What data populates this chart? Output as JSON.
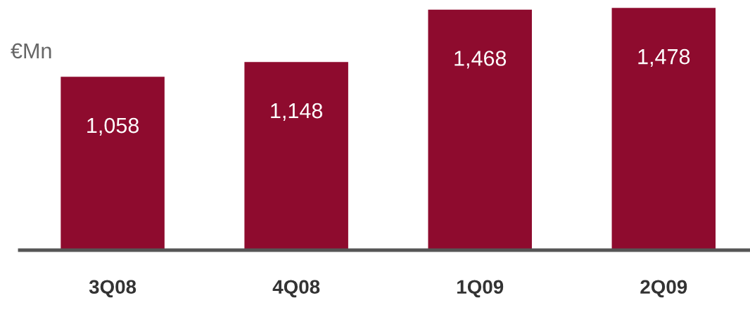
{
  "chart_data": {
    "type": "bar",
    "ylabel": "€Mn",
    "categories": [
      "3Q08",
      "4Q08",
      "1Q09",
      "2Q09"
    ],
    "values": [
      1058,
      1148,
      1468,
      1478
    ],
    "value_labels": [
      "1,058",
      "1,148",
      "1,468",
      "1,478"
    ],
    "color": "#8e0b2e",
    "grid": false,
    "legend": false
  }
}
